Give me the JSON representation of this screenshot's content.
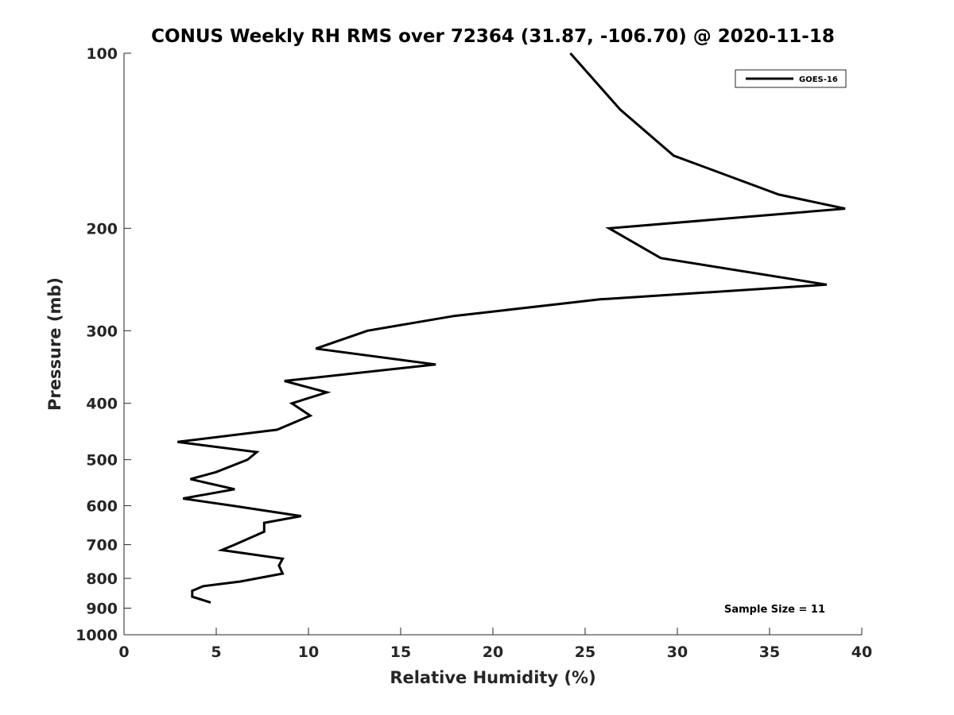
{
  "chart_data": {
    "type": "line",
    "title": "CONUS Weekly RH RMS over 72364 (31.87, -106.70) @ 2020-11-18",
    "xlabel": "Relative Humidity (%)",
    "ylabel": "Pressure (mb)",
    "xlim": [
      0,
      40
    ],
    "ylim": [
      100,
      1000
    ],
    "y_scale": "log",
    "y_reversed": true,
    "xticks": [
      "0",
      "5",
      "10",
      "15",
      "20",
      "25",
      "30",
      "35",
      "40"
    ],
    "yticks": [
      "100",
      "200",
      "300",
      "400",
      "500",
      "600",
      "700",
      "800",
      "900",
      "1000"
    ],
    "grid": false,
    "legend_position": "top-right",
    "annotation": "Sample Size = 11",
    "series": [
      {
        "name": "GOES-16",
        "color": "#000000",
        "points": [
          {
            "x": 24.2,
            "y": 100
          },
          {
            "x": 26.9,
            "y": 125
          },
          {
            "x": 29.8,
            "y": 150
          },
          {
            "x": 35.5,
            "y": 175
          },
          {
            "x": 39.1,
            "y": 185
          },
          {
            "x": 26.3,
            "y": 200
          },
          {
            "x": 29.1,
            "y": 225
          },
          {
            "x": 38.1,
            "y": 250
          },
          {
            "x": 25.8,
            "y": 265
          },
          {
            "x": 17.9,
            "y": 283
          },
          {
            "x": 13.2,
            "y": 300
          },
          {
            "x": 10.4,
            "y": 322
          },
          {
            "x": 16.9,
            "y": 343
          },
          {
            "x": 8.7,
            "y": 366
          },
          {
            "x": 11.0,
            "y": 383
          },
          {
            "x": 9.1,
            "y": 400
          },
          {
            "x": 10.1,
            "y": 420
          },
          {
            "x": 8.3,
            "y": 444
          },
          {
            "x": 2.9,
            "y": 466
          },
          {
            "x": 7.2,
            "y": 485
          },
          {
            "x": 6.7,
            "y": 500
          },
          {
            "x": 5.0,
            "y": 525
          },
          {
            "x": 3.6,
            "y": 540
          },
          {
            "x": 6.0,
            "y": 562
          },
          {
            "x": 3.2,
            "y": 583
          },
          {
            "x": 5.9,
            "y": 600
          },
          {
            "x": 9.6,
            "y": 625
          },
          {
            "x": 7.6,
            "y": 642
          },
          {
            "x": 7.6,
            "y": 665
          },
          {
            "x": 6.0,
            "y": 700
          },
          {
            "x": 5.3,
            "y": 715
          },
          {
            "x": 8.6,
            "y": 740
          },
          {
            "x": 8.4,
            "y": 760
          },
          {
            "x": 8.6,
            "y": 785
          },
          {
            "x": 6.3,
            "y": 810
          },
          {
            "x": 4.3,
            "y": 825
          },
          {
            "x": 3.7,
            "y": 840
          },
          {
            "x": 3.7,
            "y": 860
          },
          {
            "x": 4.7,
            "y": 880
          }
        ]
      }
    ]
  }
}
